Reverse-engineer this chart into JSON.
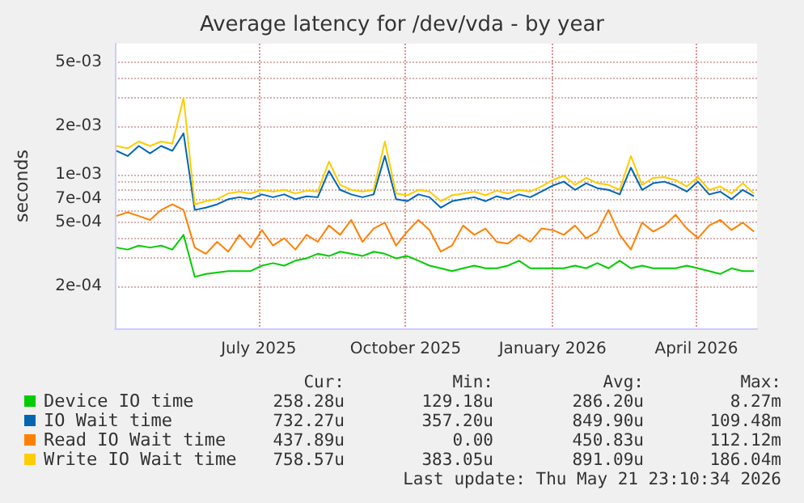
{
  "chart_data": {
    "type": "line",
    "title": "Average latency for /dev/vda - by year",
    "ylabel": "seconds",
    "x": [
      "2025-04-03",
      "2025-04-10",
      "2025-04-17",
      "2025-04-24",
      "2025-05-01",
      "2025-05-08",
      "2025-05-15",
      "2025-05-22",
      "2025-05-29",
      "2025-06-05",
      "2025-06-12",
      "2025-06-19",
      "2025-06-26",
      "2025-07-03",
      "2025-07-10",
      "2025-07-17",
      "2025-07-24",
      "2025-07-31",
      "2025-08-07",
      "2025-08-14",
      "2025-08-21",
      "2025-08-28",
      "2025-09-04",
      "2025-09-11",
      "2025-09-18",
      "2025-09-25",
      "2025-10-02",
      "2025-10-09",
      "2025-10-16",
      "2025-10-23",
      "2025-10-30",
      "2025-11-06",
      "2025-11-13",
      "2025-11-20",
      "2025-11-27",
      "2025-12-04",
      "2025-12-11",
      "2025-12-18",
      "2025-12-25",
      "2026-01-01",
      "2026-01-08",
      "2026-01-15",
      "2026-01-22",
      "2026-01-29",
      "2026-02-05",
      "2026-02-12",
      "2026-02-19",
      "2026-02-26",
      "2026-03-05",
      "2026-03-12",
      "2026-03-19",
      "2026-03-26",
      "2026-04-02",
      "2026-04-09",
      "2026-04-16",
      "2026-04-23",
      "2026-04-30",
      "2026-05-07"
    ],
    "series": [
      {
        "name": "Device IO time",
        "color": "#00cc00",
        "values": [
          0.00035,
          0.00034,
          0.00036,
          0.00035,
          0.00036,
          0.00034,
          0.00042,
          0.00023,
          0.00024,
          0.000245,
          0.00025,
          0.00025,
          0.00025,
          0.00027,
          0.00028,
          0.00027,
          0.00029,
          0.0003,
          0.00032,
          0.00031,
          0.00033,
          0.00032,
          0.00031,
          0.00033,
          0.00032,
          0.0003,
          0.00031,
          0.00029,
          0.00027,
          0.00026,
          0.00025,
          0.00026,
          0.00027,
          0.00026,
          0.00026,
          0.00027,
          0.00029,
          0.00026,
          0.00026,
          0.00026,
          0.00026,
          0.00027,
          0.00026,
          0.00028,
          0.00026,
          0.00029,
          0.00026,
          0.00027,
          0.00026,
          0.00026,
          0.00026,
          0.00027,
          0.00026,
          0.00025,
          0.00024,
          0.00026,
          0.00025,
          0.00025
        ]
      },
      {
        "name": "IO Wait time",
        "color": "#0066b3",
        "values": [
          0.0014,
          0.0013,
          0.0015,
          0.00135,
          0.0015,
          0.0014,
          0.0018,
          0.0006,
          0.00062,
          0.00065,
          0.0007,
          0.00072,
          0.0007,
          0.00075,
          0.00072,
          0.00075,
          0.0007,
          0.00073,
          0.00072,
          0.00105,
          0.0008,
          0.00075,
          0.00072,
          0.00075,
          0.0013,
          0.0007,
          0.00068,
          0.00075,
          0.00072,
          0.00062,
          0.00068,
          0.0007,
          0.00072,
          0.00068,
          0.00073,
          0.0007,
          0.00075,
          0.00072,
          0.00078,
          0.00085,
          0.0009,
          0.0008,
          0.00088,
          0.00082,
          0.0008,
          0.00075,
          0.0011,
          0.0008,
          0.00088,
          0.0009,
          0.00085,
          0.00078,
          0.0009,
          0.00075,
          0.00078,
          0.0007,
          0.0008,
          0.00073
        ]
      },
      {
        "name": "Read IO Wait time",
        "color": "#ff8000",
        "values": [
          0.00055,
          0.00058,
          0.00055,
          0.00052,
          0.0006,
          0.00065,
          0.0006,
          0.00035,
          0.00032,
          0.00038,
          0.00033,
          0.00042,
          0.00035,
          0.00045,
          0.00036,
          0.0004,
          0.00034,
          0.00042,
          0.00038,
          0.00048,
          0.00042,
          0.00052,
          0.00038,
          0.00046,
          0.0005,
          0.00036,
          0.00044,
          0.00052,
          0.00045,
          0.00033,
          0.00036,
          0.00048,
          0.00042,
          0.00046,
          0.00038,
          0.00037,
          0.00042,
          0.00038,
          0.00046,
          0.00045,
          0.00042,
          0.00048,
          0.0004,
          0.00044,
          0.0006,
          0.00042,
          0.00034,
          0.0005,
          0.00044,
          0.00048,
          0.00056,
          0.00046,
          0.0004,
          0.00048,
          0.00052,
          0.00045,
          0.0005,
          0.00044
        ]
      },
      {
        "name": "Write IO Wait time",
        "color": "#ffcc00",
        "values": [
          0.0015,
          0.00145,
          0.0016,
          0.0015,
          0.0016,
          0.00155,
          0.003,
          0.00065,
          0.00068,
          0.0007,
          0.00076,
          0.00078,
          0.00076,
          0.0008,
          0.00078,
          0.0008,
          0.00076,
          0.00079,
          0.00078,
          0.0012,
          0.00086,
          0.0008,
          0.00078,
          0.0008,
          0.0016,
          0.00076,
          0.00074,
          0.0008,
          0.00078,
          0.00068,
          0.00074,
          0.00076,
          0.00078,
          0.00074,
          0.00079,
          0.00076,
          0.0008,
          0.00078,
          0.00084,
          0.00092,
          0.00098,
          0.00086,
          0.00095,
          0.00088,
          0.00086,
          0.0008,
          0.0013,
          0.00086,
          0.00095,
          0.00096,
          0.00092,
          0.00084,
          0.00096,
          0.0008,
          0.00084,
          0.00076,
          0.00088,
          0.00076
        ]
      }
    ],
    "log": "y",
    "ylim": [
      0.00011,
      0.0065
    ],
    "yticks": [
      {
        "value": 0.0002,
        "label": "2e-04"
      },
      {
        "value": 0.0003,
        "label": null
      },
      {
        "value": 0.0004,
        "label": null
      },
      {
        "value": 0.0005,
        "label": "5e-04"
      },
      {
        "value": 0.0006,
        "label": null
      },
      {
        "value": 0.0007,
        "label": "7e-04"
      },
      {
        "value": 0.0008,
        "label": null
      },
      {
        "value": 0.0009,
        "label": null
      },
      {
        "value": 0.001,
        "label": "1e-03"
      },
      {
        "value": 0.002,
        "label": "2e-03"
      },
      {
        "value": 0.003,
        "label": null
      },
      {
        "value": 0.004,
        "label": null
      },
      {
        "value": 0.005,
        "label": "5e-03"
      }
    ],
    "xlim": [
      "2025-04-02",
      "2026-05-09"
    ],
    "xticks": [
      {
        "value": "2025-07-01",
        "label": "July 2025"
      },
      {
        "value": "2025-10-01",
        "label": "October 2025"
      },
      {
        "value": "2026-01-01",
        "label": "January 2026"
      },
      {
        "value": "2026-04-01",
        "label": "April 2026"
      }
    ],
    "grid": true,
    "legend": "bottom left",
    "marker": "none",
    "line_style": "solid",
    "annotations": [
      "Cur:",
      "Min:",
      "Avg:",
      "Max:",
      "258.28u",
      "129.18u",
      "286.20u",
      "8.27m",
      "732.27u",
      "357.20u",
      "849.90u",
      "109.48m",
      "437.89u",
      "0.00",
      "450.83u",
      "112.12m",
      "758.57u",
      "383.05u",
      "891.09u",
      "186.04m",
      "Last update: Thu May 21 23:10:34 2026"
    ]
  }
}
